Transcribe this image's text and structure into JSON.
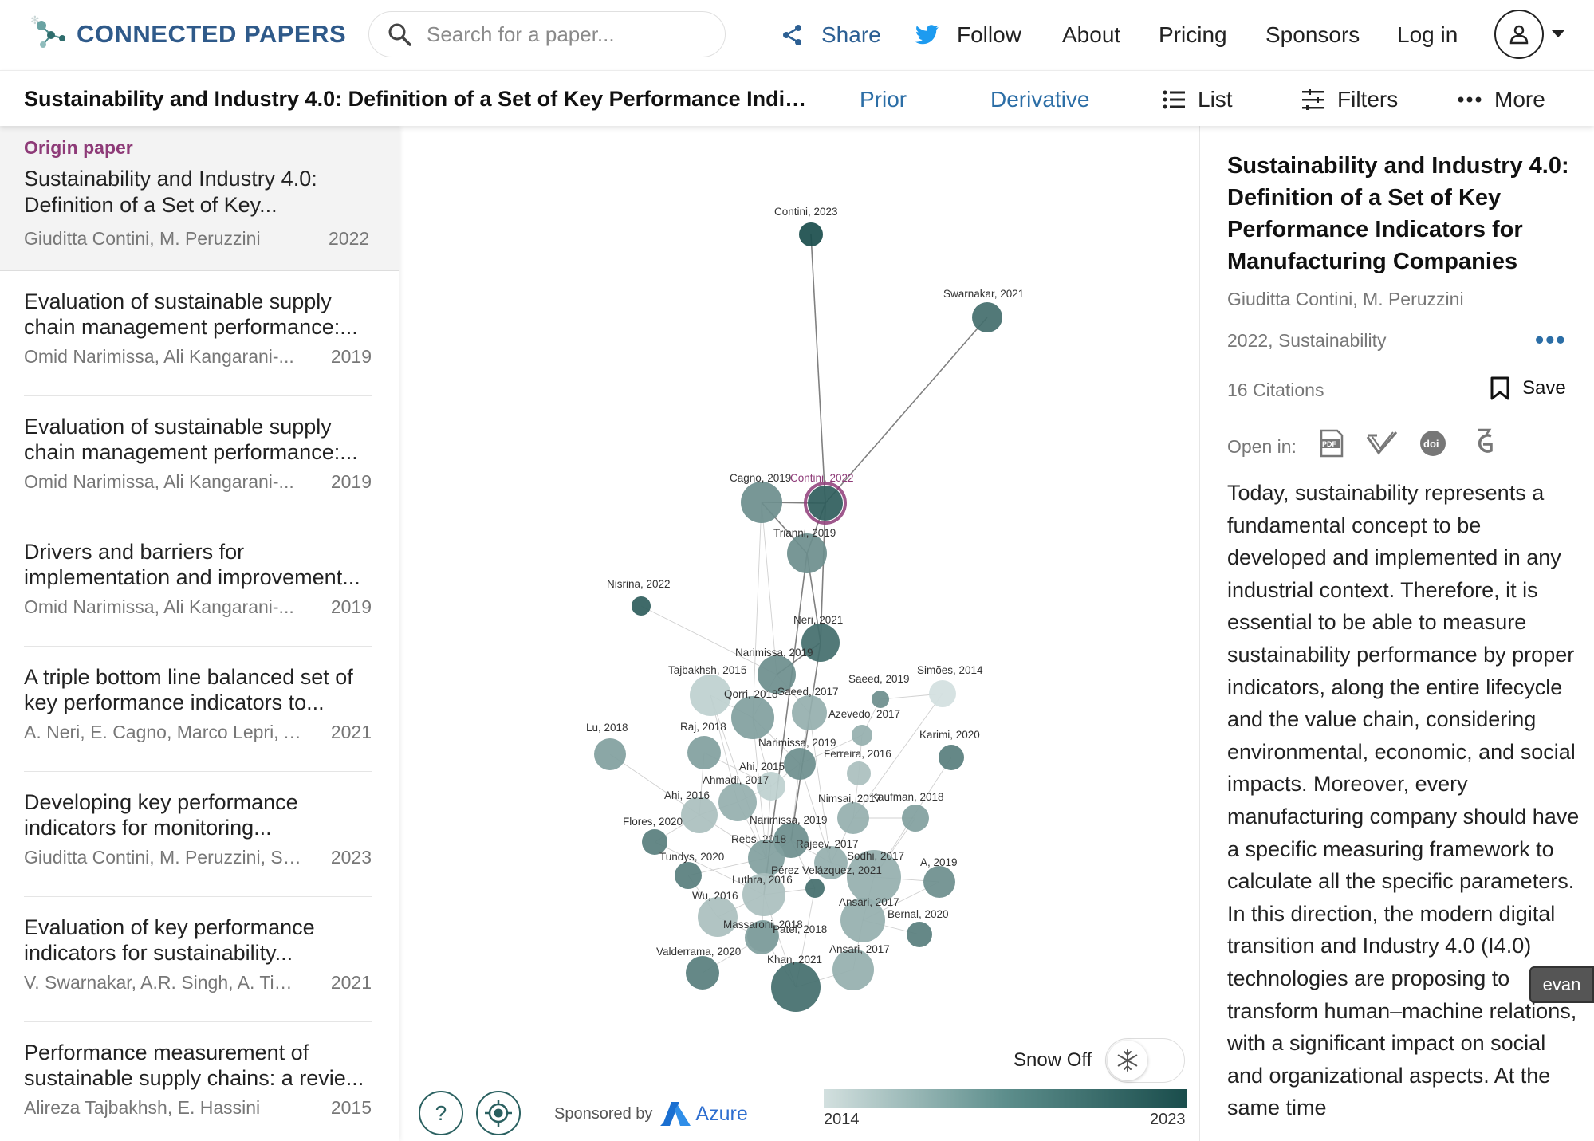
{
  "header": {
    "logo": "CONNECTED PAPERS",
    "search_placeholder": "Search for a paper...",
    "share": "Share",
    "follow": "Follow",
    "about": "About",
    "pricing": "Pricing",
    "sponsors": "Sponsors",
    "login": "Log in"
  },
  "subbar": {
    "title": "Sustainability and Industry 4.0: Definition of a Set of Key Performance Indicators...",
    "prior": "Prior",
    "derivative": "Derivative",
    "list": "List",
    "filters": "Filters",
    "more": "More"
  },
  "origin": {
    "label": "Origin paper",
    "title": "Sustainability and Industry 4.0: Definition of a Set of Key...",
    "authors": "Giuditta Contini, M. Peruzzini",
    "year": "2022"
  },
  "papers": [
    {
      "title": "Evaluation of sustainable supply chain management performance:...",
      "authors": "Omid Narimissa, Ali Kangarani-...",
      "year": "2019"
    },
    {
      "title": "Evaluation of sustainable supply chain management performance:...",
      "authors": "Omid Narimissa, Ali Kangarani-...",
      "year": "2019"
    },
    {
      "title": "Drivers and barriers for implementation and improvement...",
      "authors": "Omid Narimissa, Ali Kangarani-...",
      "year": "2019"
    },
    {
      "title": "A triple bottom line balanced set of key performance indicators to...",
      "authors": "A. Neri, E. Cagno, Marco Lepri, A....",
      "year": "2021"
    },
    {
      "title": "Developing key performance indicators for monitoring...",
      "authors": "Giuditta Contini, M. Peruzzini, S....",
      "year": "2023"
    },
    {
      "title": "Evaluation of key performance indicators for sustainability...",
      "authors": "V. Swarnakar, A.R. Singh, A. Tiwari",
      "year": "2021"
    },
    {
      "title": "Performance measurement of sustainable supply chains: a revie...",
      "authors": "Alireza Tajbakhsh, E. Hassini",
      "year": "2015"
    }
  ],
  "graph": {
    "nodes": [
      {
        "label": "Contini, 2023",
        "year": 2023
      },
      {
        "label": "Swarnakar, 2021",
        "year": 2021
      },
      {
        "label": "Cagno, 2019",
        "year": 2019
      },
      {
        "label": "Contini, 2022",
        "year": 2022,
        "origin": true
      },
      {
        "label": "Trianni, 2019",
        "year": 2019
      },
      {
        "label": "Nisrina, 2022",
        "year": 2022
      },
      {
        "label": "Neri, 2021",
        "year": 2021
      },
      {
        "label": "Narimissa, 2019",
        "year": 2019
      },
      {
        "label": "Tajbakhsh, 2015",
        "year": 2015
      },
      {
        "label": "Saeed, 2019",
        "year": 2019
      },
      {
        "label": "Simões, 2014",
        "year": 2014
      },
      {
        "label": "Qorri, 2018",
        "year": 2018
      },
      {
        "label": "Saeed, 2017",
        "year": 2017
      },
      {
        "label": "Azevedo, 2017",
        "year": 2017
      },
      {
        "label": "Lu, 2018",
        "year": 2018
      },
      {
        "label": "Raj, 2018",
        "year": 2018
      },
      {
        "label": "Karimi, 2020",
        "year": 2020
      },
      {
        "label": "Narimissa, 2019",
        "year": 2019
      },
      {
        "label": "Ferreira, 2016",
        "year": 2016
      },
      {
        "label": "Ahi, 2015",
        "year": 2015
      },
      {
        "label": "Ahmadi, 2017",
        "year": 2017
      },
      {
        "label": "Ahi, 2016",
        "year": 2016
      },
      {
        "label": "Nimsai, 2017",
        "year": 2017
      },
      {
        "label": "Kaufman, 2018",
        "year": 2018
      },
      {
        "label": "Flores, 2020",
        "year": 2020
      },
      {
        "label": "Narimissa, 2019",
        "year": 2019
      },
      {
        "label": "Rebs, 2018",
        "year": 2018
      },
      {
        "label": "Rajeev, 2017",
        "year": 2017
      },
      {
        "label": "Tundys, 2020",
        "year": 2020
      },
      {
        "label": "Sodhi, 2017",
        "year": 2017
      },
      {
        "label": "A, 2019",
        "year": 2019
      },
      {
        "label": "Luthra, 2016",
        "year": 2016
      },
      {
        "label": "Pérez Velázquez, 2021",
        "year": 2021
      },
      {
        "label": "Wu, 2016",
        "year": 2016
      },
      {
        "label": "Ansari, 2017",
        "year": 2017
      },
      {
        "label": "Bernal, 2020",
        "year": 2020
      },
      {
        "label": "Massaroni, 2018",
        "year": 2018
      },
      {
        "label": "Patel, 2018",
        "year": 2018
      },
      {
        "label": "Valderrama, 2020",
        "year": 2020
      },
      {
        "label": "Ansari, 2017",
        "year": 2017
      },
      {
        "label": "Khan, 2021",
        "year": 2021
      }
    ],
    "snow_label": "Snow Off",
    "year_min": "2014",
    "year_max": "2023",
    "sponsored_by": "Sponsored by",
    "sponsor": "Azure",
    "help": "?"
  },
  "detail": {
    "title": "Sustainability and Industry 4.0: Definition of a Set of Key Performance Indicators for Manufacturing Companies",
    "authors": "Giuditta Contini, M. Peruzzini",
    "meta": "2022, Sustainability",
    "citations": "16 Citations",
    "save": "Save",
    "open_in": "Open in:",
    "abstract": "Today, sustainability represents a fundamental concept to be developed and implemented in any industrial context. Therefore, it is essential to be able to measure sustainability performance by proper indicators, along the entire lifecycle and the value chain, considering environmental, economic, and social impacts. Moreover, every manufacturing company should have a specific measuring framework to calculate all the specific parameters. In this direction, the modern digital transition and Industry 4.0 (I4.0) technologies are proposing to transform human–machine relations, with a significant impact on social and organizational aspects. At the same time"
  },
  "user_tag": "evan",
  "colors": {
    "accent_blue": "#2c6ea6",
    "origin_purple": "#8e3b78",
    "node_dark": "#1a4d4c",
    "node_light": "#d3e0df"
  }
}
